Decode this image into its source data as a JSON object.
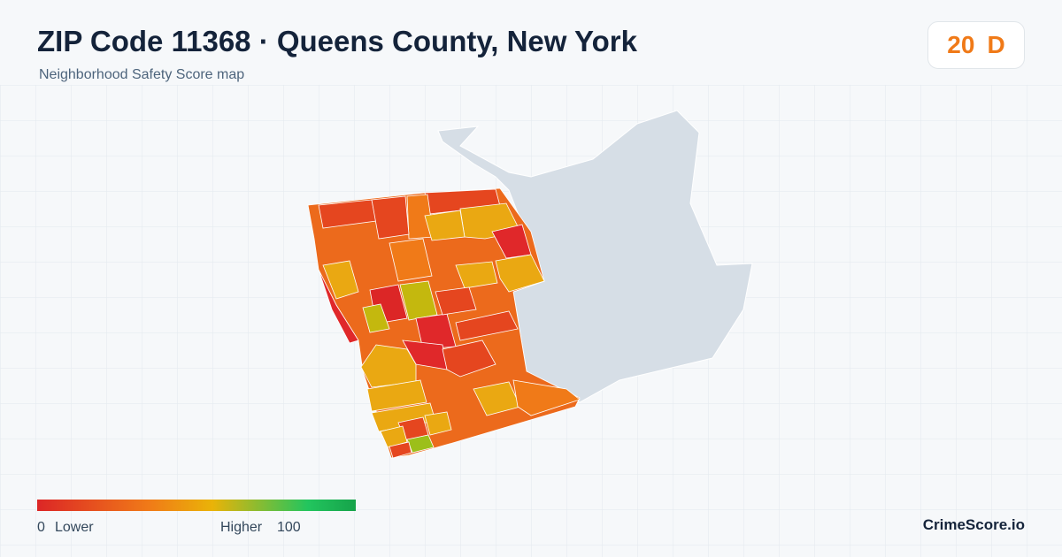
{
  "header": {
    "title": "ZIP Code 11368 · Queens County, New York",
    "subtitle": "Neighborhood Safety Score map"
  },
  "score": {
    "value": 20,
    "grade": "D"
  },
  "legend": {
    "min": 0,
    "min_label": "Lower",
    "max_label": "Higher",
    "max": 100
  },
  "footer": {
    "brand": "CrimeScore.io"
  }
}
